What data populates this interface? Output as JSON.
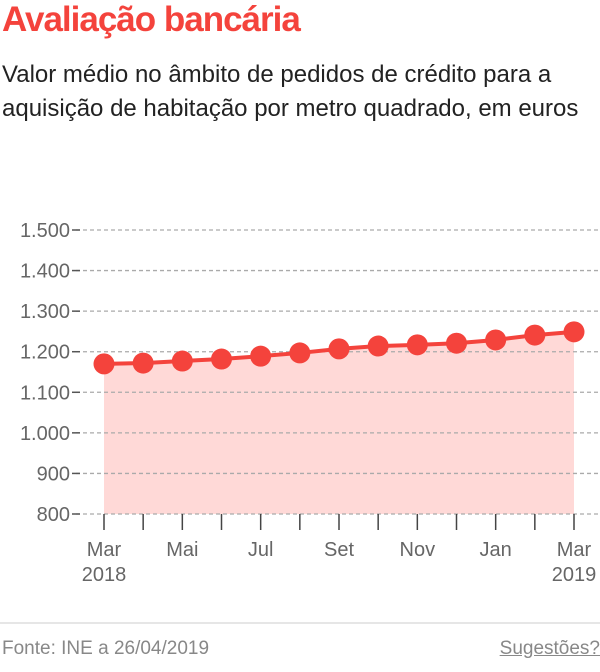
{
  "header": {
    "title": "Avaliação bancária",
    "subtitle": "Valor médio no âmbito de pedidos de crédito para a aquisição de habitação por metro quadrado, em euros"
  },
  "footer": {
    "source": "Fonte: INE a 26/04/2019",
    "suggestions": "Sugestões?"
  },
  "chart_data": {
    "type": "area",
    "title": "Avaliação bancária",
    "subtitle": "Valor médio no âmbito de pedidos de crédito para a aquisição de habitação por metro quadrado, em euros",
    "x": [
      "2018-03",
      "2018-04",
      "2018-05",
      "2018-06",
      "2018-07",
      "2018-08",
      "2018-09",
      "2018-10",
      "2018-11",
      "2018-12",
      "2019-01",
      "2019-02",
      "2019-03"
    ],
    "values": [
      1170,
      1172,
      1177,
      1182,
      1189,
      1197,
      1207,
      1214,
      1217,
      1221,
      1229,
      1241,
      1249
    ],
    "ylim": [
      800,
      1500
    ],
    "yticks": [
      800,
      900,
      1000,
      1100,
      1200,
      1300,
      1400,
      1500
    ],
    "ytick_labels": [
      "800",
      "900",
      "1.000",
      "1.100",
      "1.200",
      "1.300",
      "1.400",
      "1.500"
    ],
    "xtick_labels": [
      {
        "label": "Mar",
        "sub": "2018"
      },
      {
        "label": "Mai"
      },
      {
        "label": "Jul"
      },
      {
        "label": "Set"
      },
      {
        "label": "Nov"
      },
      {
        "label": "Jan"
      },
      {
        "label": "Mar",
        "sub": "2019"
      }
    ],
    "grid": true,
    "colors": {
      "line": "#f4433c",
      "fill": "#ffd9d7",
      "title": "#f4433c"
    }
  }
}
